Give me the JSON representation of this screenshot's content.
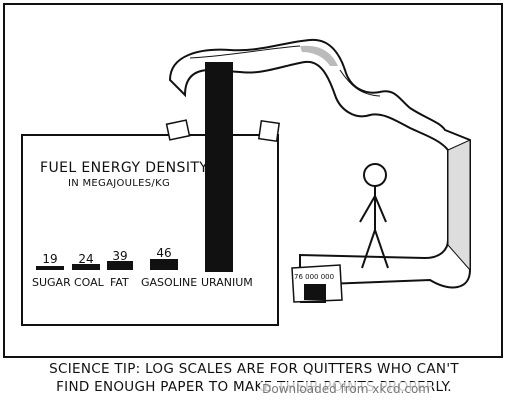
{
  "comic": {
    "title": "FUEL ENERGY DENSITY",
    "subtitle": "IN MEGAJOULES/KG",
    "bars": [
      {
        "label": "SUGAR",
        "value": "19"
      },
      {
        "label": "COAL",
        "value": "24"
      },
      {
        "label": "FAT",
        "value": "39"
      },
      {
        "label": "GASOLINE",
        "value": "46"
      },
      {
        "label": "URANIUM",
        "value": ""
      }
    ],
    "uranium_value": "76 000 000",
    "caption_line1": "SCIENCE TIP: LOG SCALES ARE FOR QUITTERS WHO CAN'T",
    "caption_line2": "FIND ENOUGH PAPER TO MAKE THEIR POINTS PROPERLY.",
    "watermark": "Downloaded from xkcd.com"
  }
}
